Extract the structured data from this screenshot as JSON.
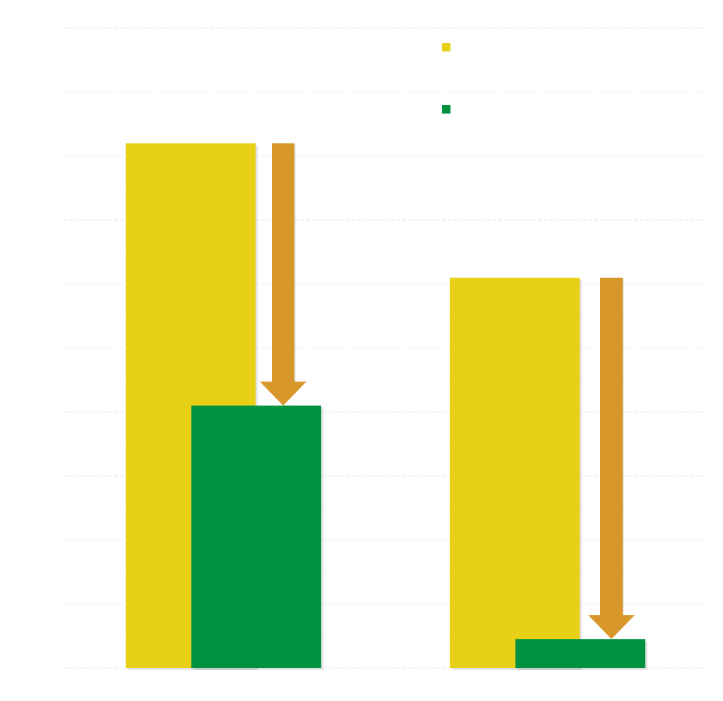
{
  "chart_data": {
    "type": "bar",
    "title": "",
    "xlabel": "",
    "ylabel": "",
    "categories": [
      "",
      ""
    ],
    "series": [
      {
        "values": [
          82,
          61
        ],
        "color": "#E8D016"
      },
      {
        "values": [
          41,
          4.5
        ],
        "color": "#009241"
      }
    ],
    "ylim": [
      0,
      100
    ],
    "grid": true,
    "legend": "top-right",
    "annotations": [
      {
        "type": "down-arrow",
        "category_index": 0,
        "from": 82,
        "to": 41,
        "color": "#D8972A"
      },
      {
        "type": "down-arrow",
        "category_index": 1,
        "from": 61,
        "to": 4.5,
        "color": "#D8972A"
      }
    ],
    "colors": {
      "grid": "#e8e8e8",
      "arrow": "#D8972A"
    }
  }
}
